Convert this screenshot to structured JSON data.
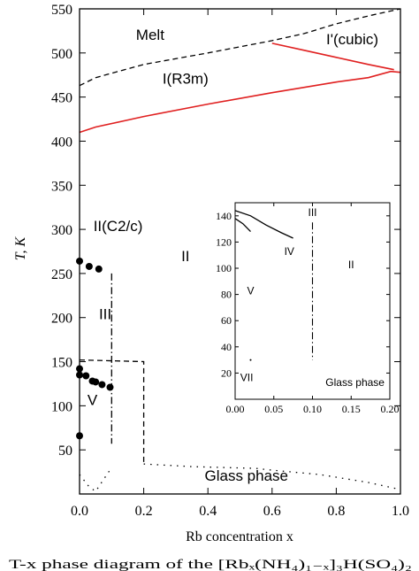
{
  "chart_data": {
    "type": "line",
    "title": "",
    "xlabel": "Rb concentration x",
    "ylabel": "T, K",
    "xlim": [
      0,
      1
    ],
    "ylim": [
      0,
      550
    ],
    "x_ticks": [
      "0.0",
      "0.2",
      "0.4",
      "0.6",
      "0.8",
      "1.0"
    ],
    "y_ticks": [
      "50",
      "100",
      "150",
      "200",
      "250",
      "300",
      "350",
      "400",
      "450",
      "500",
      "550"
    ],
    "x_tick_values": [
      0,
      0.2,
      0.4,
      0.6,
      0.8,
      1.0
    ],
    "y_tick_values": [
      50,
      100,
      150,
      200,
      250,
      300,
      350,
      400,
      450,
      500,
      550
    ],
    "grid": false,
    "series": [
      {
        "style": "dashed",
        "color": "#000000",
        "points": [
          [
            0.0,
            463
          ],
          [
            0.05,
            472
          ],
          [
            0.2,
            487
          ],
          [
            0.4,
            500
          ],
          [
            0.6,
            514
          ],
          [
            0.7,
            522
          ],
          [
            0.8,
            533
          ],
          [
            0.9,
            542
          ],
          [
            0.95,
            546
          ],
          [
            1.0,
            550
          ]
        ]
      },
      {
        "style": "solid",
        "color": "#e02020",
        "points": [
          [
            0.0,
            410
          ],
          [
            0.05,
            416
          ],
          [
            0.2,
            428
          ],
          [
            0.4,
            442
          ],
          [
            0.6,
            455
          ],
          [
            0.8,
            467
          ],
          [
            0.9,
            472
          ],
          [
            0.97,
            479
          ],
          [
            1.0,
            478
          ]
        ]
      },
      {
        "style": "solid",
        "color": "#e02020",
        "points": [
          [
            0.6,
            511
          ],
          [
            0.7,
            503
          ],
          [
            0.8,
            495
          ],
          [
            0.9,
            487
          ],
          [
            0.98,
            481
          ]
        ]
      },
      {
        "style": "dash-dot",
        "color": "#000000",
        "points": [
          [
            0.1,
            250
          ],
          [
            0.1,
            57
          ]
        ]
      },
      {
        "style": "dashed",
        "color": "#000000",
        "points": [
          [
            0.0,
            152
          ],
          [
            0.2,
            150
          ],
          [
            0.2,
            33
          ]
        ]
      },
      {
        "style": "dotted",
        "color": "#000000",
        "points": [
          [
            0.2,
            34
          ],
          [
            0.35,
            31
          ],
          [
            0.55,
            29
          ],
          [
            0.6,
            27
          ],
          [
            0.75,
            22
          ],
          [
            0.9,
            13
          ],
          [
            1.0,
            5
          ]
        ]
      },
      {
        "style": "dotted",
        "color": "#000000",
        "points": [
          [
            0.0,
            22
          ],
          [
            0.03,
            8
          ],
          [
            0.05,
            3
          ],
          [
            0.1,
            30
          ]
        ]
      },
      {
        "style": "markers",
        "color": "#000000",
        "points": [
          [
            0.0,
            264
          ],
          [
            0.03,
            258
          ],
          [
            0.06,
            255
          ]
        ]
      },
      {
        "style": "markers",
        "color": "#000000",
        "points": [
          [
            0.0,
            142
          ],
          [
            0.0,
            135
          ],
          [
            0.02,
            134
          ],
          [
            0.04,
            128
          ],
          [
            0.05,
            127
          ],
          [
            0.07,
            124
          ],
          [
            0.095,
            121
          ]
        ]
      },
      {
        "style": "markers",
        "color": "#000000",
        "points": [
          [
            0.0,
            66
          ]
        ]
      }
    ],
    "annotations": [
      {
        "text": "Melt",
        "x": 0.22,
        "y": 515
      },
      {
        "text": "I'(cubic)",
        "x": 0.85,
        "y": 510
      },
      {
        "text": "I(R3m)",
        "x": 0.33,
        "y": 465
      },
      {
        "text": "II(C2/c)",
        "x": 0.12,
        "y": 298
      },
      {
        "text": "II",
        "x": 0.33,
        "y": 264
      },
      {
        "text": "III",
        "x": 0.08,
        "y": 198
      },
      {
        "text": "V",
        "x": 0.04,
        "y": 101
      },
      {
        "text": "Glass phase",
        "x": 0.52,
        "y": 15
      }
    ],
    "inset": {
      "xlim": [
        0,
        0.2
      ],
      "ylim": [
        0,
        150
      ],
      "x_ticks": [
        "0.00",
        "0.05",
        "0.10",
        "0.15",
        "0.20"
      ],
      "y_ticks": [
        "20",
        "40",
        "60",
        "80",
        "100",
        "120",
        "140"
      ],
      "x_tick_values": [
        0,
        0.05,
        0.1,
        0.15,
        0.2
      ],
      "y_tick_values": [
        20,
        40,
        60,
        80,
        100,
        120,
        140
      ],
      "series": [
        {
          "style": "solid",
          "color": "#000000",
          "points": [
            [
              0.0,
              144
            ],
            [
              0.02,
              140
            ],
            [
              0.04,
              133
            ],
            [
              0.06,
              127
            ],
            [
              0.075,
              123
            ]
          ]
        },
        {
          "style": "solid",
          "color": "#000000",
          "points": [
            [
              0.0,
              138
            ],
            [
              0.01,
              134
            ],
            [
              0.02,
              128
            ]
          ]
        },
        {
          "style": "dash-dot",
          "color": "#000000",
          "points": [
            [
              0.1,
              135
            ],
            [
              0.1,
              30
            ]
          ]
        },
        {
          "style": "dotted",
          "color": "#000000",
          "points": [
            [
              0.02,
              30
            ]
          ]
        }
      ],
      "annotations": [
        {
          "text": "III",
          "x": 0.1,
          "y": 140
        },
        {
          "text": "IV",
          "x": 0.07,
          "y": 110
        },
        {
          "text": "II",
          "x": 0.15,
          "y": 100
        },
        {
          "text": "V",
          "x": 0.02,
          "y": 80
        },
        {
          "text": "VII",
          "x": 0.015,
          "y": 14
        },
        {
          "text": "Glass phase",
          "x": 0.155,
          "y": 10
        }
      ]
    }
  },
  "caption": "T-x phase diagram of the [Rbₓ(NH₄)₁₋ₓ]₃H(SO₄)₂"
}
